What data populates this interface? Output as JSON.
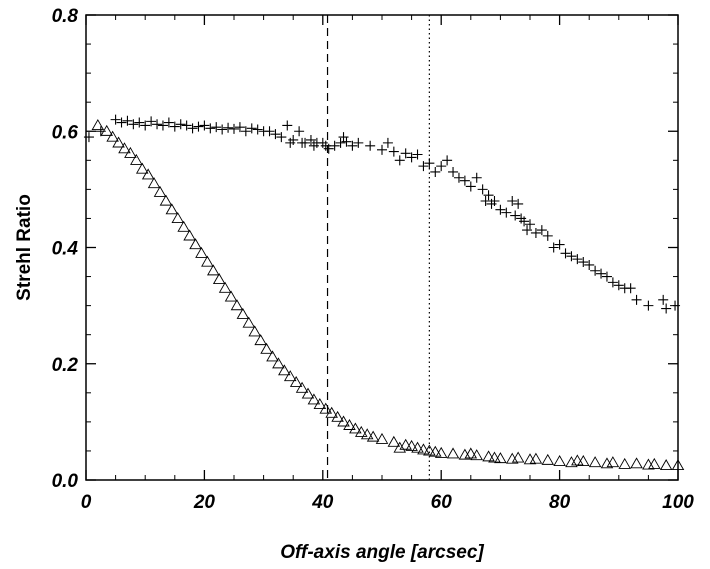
{
  "chart_data": {
    "type": "scatter",
    "title": "",
    "xlabel": "Off-axis angle [arcsec]",
    "ylabel": "Strehl Ratio",
    "xlim": [
      0,
      100
    ],
    "ylim": [
      0,
      0.8
    ],
    "xticks": [
      "0",
      "20",
      "40",
      "60",
      "80",
      "100"
    ],
    "yticks": [
      "0.0",
      "0.2",
      "0.4",
      "0.6",
      "0.8"
    ],
    "grid": false,
    "legend": "none",
    "vlines": [
      {
        "x": 40.8,
        "style": "dashed"
      },
      {
        "x": 58.0,
        "style": "dotted"
      }
    ],
    "series": [
      {
        "marker": "plus",
        "color": "#000000",
        "points": [
          [
            0.5,
            0.59
          ],
          [
            2.5,
            0.6
          ],
          [
            5,
            0.62
          ],
          [
            6,
            0.615
          ],
          [
            7,
            0.618
          ],
          [
            8,
            0.612
          ],
          [
            9,
            0.615
          ],
          [
            10,
            0.61
          ],
          [
            11,
            0.617
          ],
          [
            12,
            0.612
          ],
          [
            13,
            0.61
          ],
          [
            14,
            0.615
          ],
          [
            15,
            0.608
          ],
          [
            16,
            0.612
          ],
          [
            17,
            0.61
          ],
          [
            18,
            0.605
          ],
          [
            19,
            0.608
          ],
          [
            20,
            0.61
          ],
          [
            21,
            0.605
          ],
          [
            22,
            0.607
          ],
          [
            23,
            0.603
          ],
          [
            24,
            0.606
          ],
          [
            25,
            0.604
          ],
          [
            26,
            0.607
          ],
          [
            27,
            0.6
          ],
          [
            28,
            0.605
          ],
          [
            29,
            0.603
          ],
          [
            30,
            0.6
          ],
          [
            31,
            0.6
          ],
          [
            32,
            0.595
          ],
          [
            33,
            0.59
          ],
          [
            34,
            0.61
          ],
          [
            34.5,
            0.58
          ],
          [
            35,
            0.585
          ],
          [
            36,
            0.6
          ],
          [
            36.5,
            0.58
          ],
          [
            37,
            0.58
          ],
          [
            38,
            0.585
          ],
          [
            38.5,
            0.575
          ],
          [
            39,
            0.58
          ],
          [
            40,
            0.58
          ],
          [
            40.5,
            0.575
          ],
          [
            41,
            0.57
          ],
          [
            42,
            0.575
          ],
          [
            43,
            0.58
          ],
          [
            43.5,
            0.59
          ],
          [
            44,
            0.582
          ],
          [
            45,
            0.575
          ],
          [
            46,
            0.58
          ],
          [
            48,
            0.575
          ],
          [
            50,
            0.568
          ],
          [
            51,
            0.58
          ],
          [
            52,
            0.565
          ],
          [
            53,
            0.55
          ],
          [
            54,
            0.562
          ],
          [
            55,
            0.555
          ],
          [
            56,
            0.56
          ],
          [
            57,
            0.54
          ],
          [
            58,
            0.545
          ],
          [
            59,
            0.53
          ],
          [
            60,
            0.54
          ],
          [
            61,
            0.55
          ],
          [
            62,
            0.53
          ],
          [
            63,
            0.52
          ],
          [
            64,
            0.515
          ],
          [
            65,
            0.505
          ],
          [
            66,
            0.52
          ],
          [
            67,
            0.5
          ],
          [
            67.5,
            0.48
          ],
          [
            68,
            0.49
          ],
          [
            68.5,
            0.475
          ],
          [
            69,
            0.48
          ],
          [
            70,
            0.465
          ],
          [
            71,
            0.46
          ],
          [
            72,
            0.48
          ],
          [
            72.5,
            0.455
          ],
          [
            73,
            0.475
          ],
          [
            73.5,
            0.45
          ],
          [
            74,
            0.445
          ],
          [
            74.5,
            0.43
          ],
          [
            75,
            0.44
          ],
          [
            76,
            0.425
          ],
          [
            77,
            0.43
          ],
          [
            78,
            0.42
          ],
          [
            79,
            0.4
          ],
          [
            80,
            0.405
          ],
          [
            81,
            0.39
          ],
          [
            82,
            0.385
          ],
          [
            83,
            0.38
          ],
          [
            84,
            0.375
          ],
          [
            85,
            0.37
          ],
          [
            86,
            0.36
          ],
          [
            87,
            0.355
          ],
          [
            88,
            0.35
          ],
          [
            89,
            0.34
          ],
          [
            90,
            0.335
          ],
          [
            91,
            0.33
          ],
          [
            92,
            0.33
          ],
          [
            93,
            0.31
          ],
          [
            95,
            0.3
          ],
          [
            97.5,
            0.31
          ],
          [
            98,
            0.295
          ],
          [
            99.5,
            0.3
          ]
        ]
      },
      {
        "marker": "triangle",
        "color": "#000000",
        "points": [
          [
            2,
            0.61
          ],
          [
            3.5,
            0.6
          ],
          [
            4.5,
            0.59
          ],
          [
            5.5,
            0.58
          ],
          [
            6.5,
            0.57
          ],
          [
            7.5,
            0.562
          ],
          [
            8.5,
            0.55
          ],
          [
            9.5,
            0.535
          ],
          [
            10.5,
            0.525
          ],
          [
            11.5,
            0.51
          ],
          [
            12.5,
            0.495
          ],
          [
            13.5,
            0.48
          ],
          [
            14.5,
            0.465
          ],
          [
            15.5,
            0.45
          ],
          [
            16.5,
            0.435
          ],
          [
            17.5,
            0.42
          ],
          [
            18.5,
            0.405
          ],
          [
            19.5,
            0.39
          ],
          [
            20.5,
            0.375
          ],
          [
            21.5,
            0.36
          ],
          [
            22.5,
            0.345
          ],
          [
            23.5,
            0.33
          ],
          [
            24.5,
            0.315
          ],
          [
            25.5,
            0.3
          ],
          [
            26.5,
            0.285
          ],
          [
            27.5,
            0.27
          ],
          [
            28.5,
            0.255
          ],
          [
            29.5,
            0.24
          ],
          [
            30.5,
            0.225
          ],
          [
            31.5,
            0.212
          ],
          [
            32.5,
            0.2
          ],
          [
            33.5,
            0.188
          ],
          [
            34.5,
            0.178
          ],
          [
            35.5,
            0.168
          ],
          [
            36.5,
            0.158
          ],
          [
            37.5,
            0.148
          ],
          [
            38.5,
            0.138
          ],
          [
            39.5,
            0.13
          ],
          [
            40.5,
            0.122
          ],
          [
            41.5,
            0.115
          ],
          [
            42.5,
            0.108
          ],
          [
            43.5,
            0.1
          ],
          [
            44.5,
            0.094
          ],
          [
            45.5,
            0.088
          ],
          [
            46.5,
            0.082
          ],
          [
            47.5,
            0.078
          ],
          [
            48.5,
            0.074
          ],
          [
            50,
            0.07
          ],
          [
            52,
            0.065
          ],
          [
            53,
            0.055
          ],
          [
            54,
            0.06
          ],
          [
            55,
            0.058
          ],
          [
            56,
            0.055
          ],
          [
            57,
            0.052
          ],
          [
            58,
            0.05
          ],
          [
            59,
            0.048
          ],
          [
            60,
            0.046
          ],
          [
            62,
            0.045
          ],
          [
            64,
            0.043
          ],
          [
            65,
            0.045
          ],
          [
            66,
            0.042
          ],
          [
            68,
            0.04
          ],
          [
            69,
            0.038
          ],
          [
            70,
            0.037
          ],
          [
            72,
            0.036
          ],
          [
            73,
            0.038
          ],
          [
            75,
            0.035
          ],
          [
            76,
            0.036
          ],
          [
            78,
            0.034
          ],
          [
            80,
            0.032
          ],
          [
            82,
            0.03
          ],
          [
            83,
            0.033
          ],
          [
            84,
            0.032
          ],
          [
            86,
            0.03
          ],
          [
            88,
            0.028
          ],
          [
            89,
            0.03
          ],
          [
            91,
            0.027
          ],
          [
            93,
            0.028
          ],
          [
            95,
            0.026
          ],
          [
            96,
            0.027
          ],
          [
            98,
            0.025
          ],
          [
            100,
            0.025
          ]
        ]
      }
    ]
  }
}
